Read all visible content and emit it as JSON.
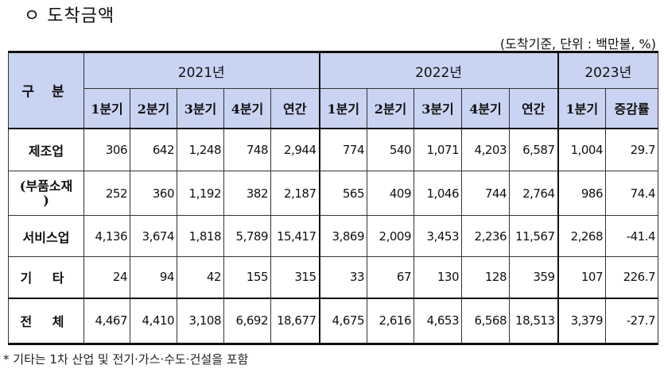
{
  "title": "ㅇ 도착금액",
  "unit_note": "(도착기준, 단위 : 백만불, %)",
  "table": {
    "corner_label": "구 분",
    "years": [
      "2021년",
      "2022년",
      "2023년"
    ],
    "subheaders": [
      "1분기",
      "2분기",
      "3분기",
      "4분기",
      "연간",
      "1분기",
      "2분기",
      "3분기",
      "4분기",
      "연간",
      "1분기",
      "증감률"
    ],
    "rows": [
      {
        "label": "제조업",
        "values": [
          "306",
          "642",
          "1,248",
          "748",
          "2,944",
          "774",
          "540",
          "1,071",
          "4,203",
          "6,587",
          "1,004",
          "29.7"
        ]
      },
      {
        "label_line1": "(부품소재",
        "label_line2": ")",
        "values": [
          "252",
          "360",
          "1,192",
          "382",
          "2,187",
          "565",
          "409",
          "1,046",
          "744",
          "2,764",
          "986",
          "74.4"
        ]
      },
      {
        "label": "서비스업",
        "values": [
          "4,136",
          "3,674",
          "1,818",
          "5,789",
          "15,417",
          "3,869",
          "2,009",
          "3,453",
          "2,236",
          "11,567",
          "2,268",
          "-41.4"
        ]
      },
      {
        "label": "기 타",
        "values": [
          "24",
          "94",
          "42",
          "155",
          "315",
          "33",
          "67",
          "130",
          "128",
          "359",
          "107",
          "226.7"
        ]
      },
      {
        "label": "전 체",
        "values": [
          "4,467",
          "4,410",
          "3,108",
          "6,692",
          "18,677",
          "4,675",
          "2,616",
          "4,653",
          "6,568",
          "18,513",
          "3,379",
          "-27.7"
        ]
      }
    ]
  },
  "footnote": "* 기타는 1차 산업 및 전기·가스·수도·건설을 포함"
}
